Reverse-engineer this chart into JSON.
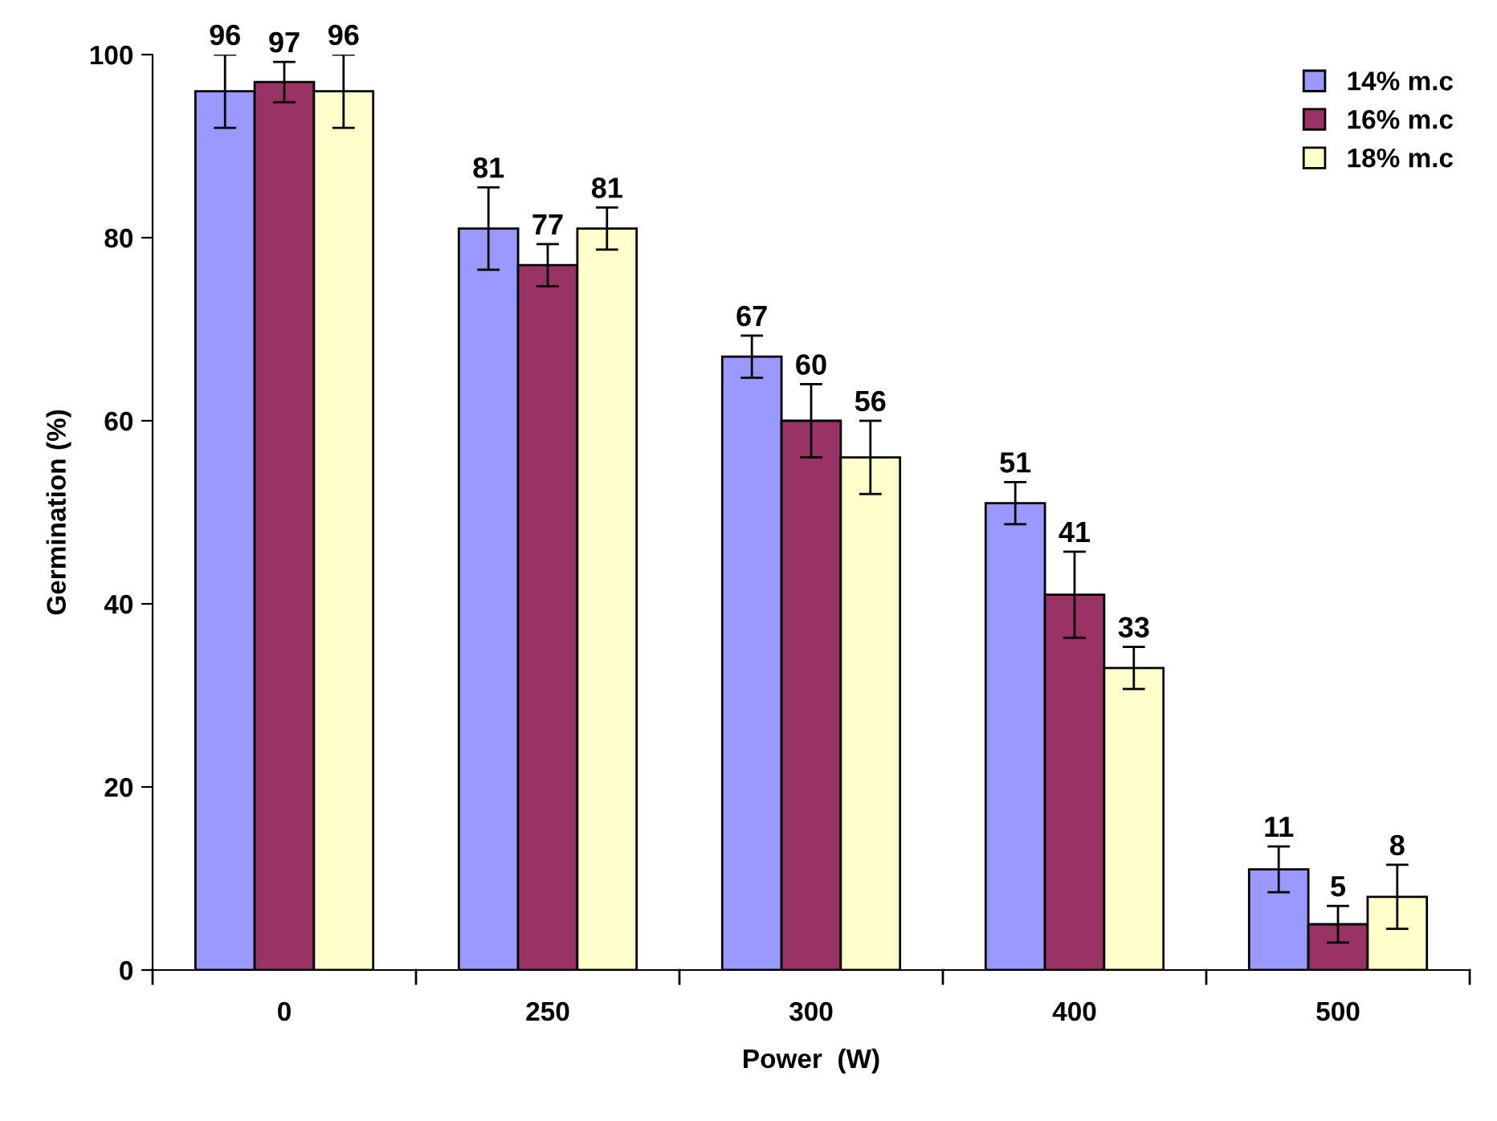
{
  "chart_data": {
    "type": "bar",
    "xlabel": "Power  (W)",
    "ylabel": "Germination (%)",
    "categories": [
      "0",
      "250",
      "300",
      "400",
      "500"
    ],
    "series": [
      {
        "name": "14% m.c",
        "color": "#9999ff",
        "values": [
          96,
          81,
          67,
          51,
          11
        ],
        "errors": [
          4,
          4.5,
          2.3,
          2.3,
          2.5
        ]
      },
      {
        "name": "16% m.c",
        "color": "#993366",
        "values": [
          97,
          77,
          60,
          41,
          5
        ],
        "errors": [
          2.2,
          2.3,
          4,
          4.7,
          2
        ]
      },
      {
        "name": "18% m.c",
        "color": "#ffffcc",
        "values": [
          96,
          81,
          56,
          33,
          8
        ],
        "errors": [
          4,
          2.3,
          4,
          2.3,
          3.5
        ]
      }
    ],
    "ylim": [
      0,
      100
    ],
    "yticks": [
      0,
      20,
      40,
      60,
      80,
      100
    ],
    "data_labels": true,
    "legend": "top right",
    "grid": false
  }
}
